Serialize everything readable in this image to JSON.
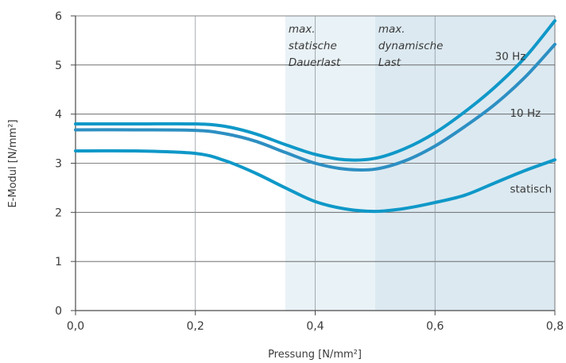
{
  "chart_data": {
    "type": "line",
    "xlabel": "Pressung [N/mm²]",
    "ylabel": "E-Modul [N/mm²]",
    "xlim": [
      0,
      0.8
    ],
    "ylim": [
      0,
      6
    ],
    "x_ticks": [
      "0,0",
      "0,2",
      "0,4",
      "0,6",
      "0,8"
    ],
    "x_tick_values": [
      0,
      0.2,
      0.4,
      0.6,
      0.8
    ],
    "y_ticks": [
      "0",
      "1",
      "2",
      "3",
      "4",
      "5",
      "6"
    ],
    "y_tick_values": [
      0,
      1,
      2,
      3,
      4,
      5,
      6
    ],
    "grid": "x and y",
    "bands": [
      {
        "from": 0.35,
        "to": 0.5,
        "label_lines": [
          "max.",
          "statische",
          "Dauerlast"
        ],
        "color": "#e9f2f6"
      },
      {
        "from": 0.5,
        "to": 0.8,
        "label_lines": [
          "max.",
          "dynamische",
          "Last"
        ],
        "color": "#dce9f1"
      }
    ],
    "series": [
      {
        "name": "30 Hz",
        "color": "#0f98c8",
        "x": [
          0,
          0.1,
          0.2,
          0.25,
          0.3,
          0.35,
          0.4,
          0.45,
          0.5,
          0.55,
          0.6,
          0.65,
          0.7,
          0.75,
          0.8
        ],
        "y": [
          3.8,
          3.8,
          3.8,
          3.75,
          3.6,
          3.38,
          3.18,
          3.07,
          3.1,
          3.3,
          3.62,
          4.05,
          4.55,
          5.15,
          5.9
        ]
      },
      {
        "name": "10 Hz",
        "color": "#2d8fc2",
        "x": [
          0,
          0.1,
          0.2,
          0.25,
          0.3,
          0.35,
          0.4,
          0.45,
          0.5,
          0.55,
          0.6,
          0.65,
          0.7,
          0.75,
          0.8
        ],
        "y": [
          3.68,
          3.68,
          3.67,
          3.6,
          3.45,
          3.22,
          3.0,
          2.88,
          2.88,
          3.05,
          3.35,
          3.75,
          4.2,
          4.75,
          5.42
        ]
      },
      {
        "name": "statisch",
        "color": "#0f98c8",
        "x": [
          0,
          0.1,
          0.2,
          0.25,
          0.3,
          0.35,
          0.4,
          0.45,
          0.5,
          0.55,
          0.6,
          0.65,
          0.7,
          0.75,
          0.8
        ],
        "y": [
          3.25,
          3.25,
          3.2,
          3.05,
          2.8,
          2.5,
          2.22,
          2.07,
          2.02,
          2.08,
          2.2,
          2.35,
          2.6,
          2.85,
          3.07
        ]
      }
    ],
    "series_labels": [
      {
        "text": "30 Hz",
        "x": 0.7,
        "y": 5.1
      },
      {
        "text": "10 Hz",
        "x": 0.725,
        "y": 3.95
      },
      {
        "text": "statisch",
        "x": 0.725,
        "y": 2.4
      }
    ]
  }
}
